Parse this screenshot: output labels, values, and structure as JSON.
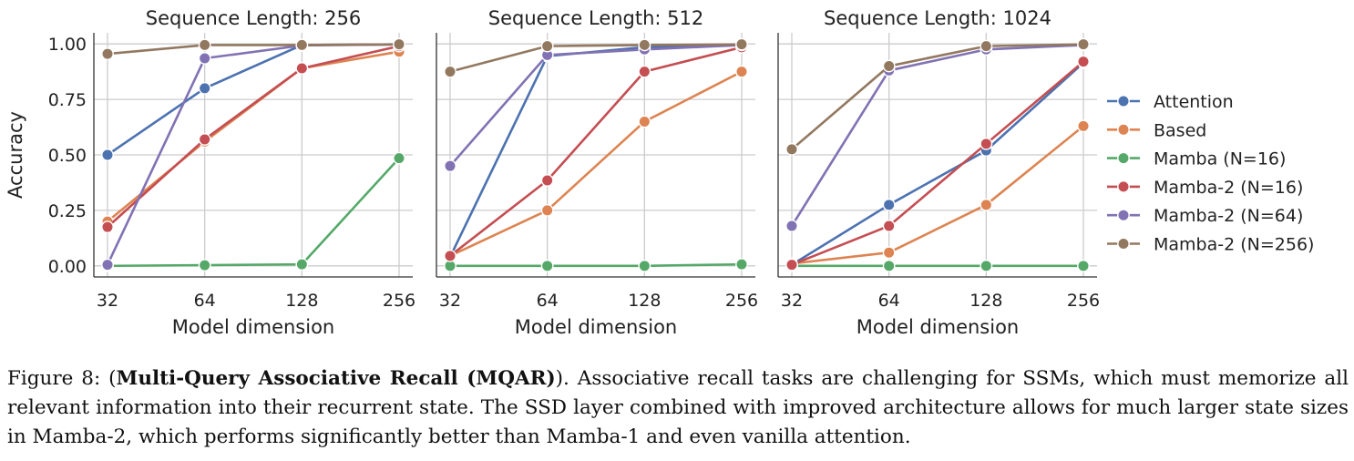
{
  "chart_data": [
    {
      "type": "line",
      "title": "Sequence Length: 256",
      "xlabel": "Model dimension",
      "ylabel": "Accuracy",
      "categories": [
        "32",
        "64",
        "128",
        "256"
      ],
      "yticks": [
        "0.00",
        "0.25",
        "0.50",
        "0.75",
        "1.00"
      ],
      "ylim": [
        -0.05,
        1.05
      ],
      "series": [
        {
          "name": "Attention",
          "values": [
            0.5,
            0.8,
            0.995,
            0.998
          ]
        },
        {
          "name": "Based",
          "values": [
            0.2,
            0.56,
            0.89,
            0.965
          ]
        },
        {
          "name": "Mamba (N=16)",
          "values": [
            0.0,
            0.003,
            0.007,
            0.485
          ]
        },
        {
          "name": "Mamba-2 (N=16)",
          "values": [
            0.175,
            0.57,
            0.89,
            0.99
          ]
        },
        {
          "name": "Mamba-2 (N=64)",
          "values": [
            0.005,
            0.935,
            0.993,
            0.998
          ]
        },
        {
          "name": "Mamba-2 (N=256)",
          "values": [
            0.955,
            0.995,
            0.995,
            0.998
          ]
        }
      ]
    },
    {
      "type": "line",
      "title": "Sequence Length: 512",
      "xlabel": "Model dimension",
      "categories": [
        "32",
        "64",
        "128",
        "256"
      ],
      "ylim": [
        -0.05,
        1.05
      ],
      "series": [
        {
          "name": "Attention",
          "values": [
            0.04,
            0.945,
            0.985,
            0.995
          ]
        },
        {
          "name": "Based",
          "values": [
            0.045,
            0.25,
            0.65,
            0.875
          ]
        },
        {
          "name": "Mamba (N=16)",
          "values": [
            0.0,
            0.0,
            0.0,
            0.007
          ]
        },
        {
          "name": "Mamba-2 (N=16)",
          "values": [
            0.045,
            0.385,
            0.875,
            0.985
          ]
        },
        {
          "name": "Mamba-2 (N=64)",
          "values": [
            0.45,
            0.95,
            0.975,
            0.995
          ]
        },
        {
          "name": "Mamba-2 (N=256)",
          "values": [
            0.875,
            0.99,
            0.995,
            0.998
          ]
        }
      ]
    },
    {
      "type": "line",
      "title": "Sequence Length: 1024",
      "xlabel": "Model dimension",
      "categories": [
        "32",
        "64",
        "128",
        "256"
      ],
      "ylim": [
        -0.05,
        1.05
      ],
      "series": [
        {
          "name": "Attention",
          "values": [
            0.005,
            0.275,
            0.52,
            0.915
          ]
        },
        {
          "name": "Based",
          "values": [
            0.01,
            0.06,
            0.275,
            0.63
          ]
        },
        {
          "name": "Mamba (N=16)",
          "values": [
            0.0,
            0.0,
            0.0,
            0.0
          ]
        },
        {
          "name": "Mamba-2 (N=16)",
          "values": [
            0.005,
            0.18,
            0.55,
            0.92
          ]
        },
        {
          "name": "Mamba-2 (N=64)",
          "values": [
            0.18,
            0.88,
            0.975,
            0.995
          ]
        },
        {
          "name": "Mamba-2 (N=256)",
          "values": [
            0.525,
            0.9,
            0.99,
            0.998
          ]
        }
      ]
    }
  ],
  "legend": {
    "placement": "right",
    "entries": [
      "Attention",
      "Based",
      "Mamba (N=16)",
      "Mamba-2 (N=16)",
      "Mamba-2 (N=64)",
      "Mamba-2 (N=256)"
    ]
  },
  "colors": {
    "Attention": "#4c72b0",
    "Based": "#dd8452",
    "Mamba (N=16)": "#55a868",
    "Mamba-2 (N=16)": "#c44e52",
    "Mamba-2 (N=64)": "#8172b3",
    "Mamba-2 (N=256)": "#937860",
    "grid": "#cccccc",
    "spine": "#333333"
  },
  "caption": {
    "prefix": "Figure 8: (",
    "bold": "Multi-Query Associative Recall (MQAR)",
    "rest": "). Associative recall tasks are challenging for SSMs, which must memorize all relevant information into their recurrent state. The SSD layer combined with improved architecture allows for much larger state sizes in Mamba-2, which performs significantly better than Mamba-1 and even vanilla attention."
  }
}
